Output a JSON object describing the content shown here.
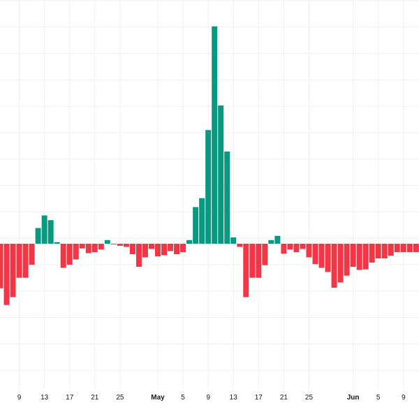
{
  "colors": {
    "up": "#089981",
    "down": "#f23645",
    "grid": "#f0f1f4",
    "text": "#131722"
  },
  "chart_data": {
    "type": "bar",
    "title": "",
    "xlabel": "",
    "ylabel": "",
    "grid": true,
    "ylim": [
      -28,
      42
    ],
    "categories": [
      "Apr 6",
      "Apr 7",
      "Apr 8",
      "Apr 9",
      "Apr 10",
      "Apr 11",
      "Apr 12",
      "Apr 13",
      "Apr 14",
      "Apr 15",
      "Apr 16",
      "Apr 17",
      "Apr 18",
      "Apr 19",
      "Apr 20",
      "Apr 21",
      "Apr 22",
      "Apr 23",
      "Apr 24",
      "Apr 25",
      "Apr 26",
      "Apr 27",
      "Apr 28",
      "Apr 29",
      "Apr 30",
      "May 1",
      "May 2",
      "May 3",
      "May 4",
      "May 5",
      "May 6",
      "May 7",
      "May 8",
      "May 9",
      "May 10",
      "May 11",
      "May 12",
      "May 13",
      "May 14",
      "May 15",
      "May 16",
      "May 17",
      "May 18",
      "May 19",
      "May 20",
      "May 21",
      "May 22",
      "May 23",
      "May 24",
      "May 25",
      "May 26",
      "May 27",
      "May 28",
      "May 29",
      "May 30",
      "May 31",
      "Jun 1",
      "Jun 2",
      "Jun 3",
      "Jun 4",
      "Jun 5",
      "Jun 6",
      "Jun 7",
      "Jun 8",
      "Jun 9",
      "Jun 10",
      "Jun 11"
    ],
    "values": [
      -8.5,
      -11.7,
      -10.2,
      -6.5,
      -6.5,
      -4.0,
      3.0,
      5.4,
      4.5,
      0.3,
      -4.6,
      -4.0,
      -3.0,
      -0.9,
      -1.8,
      -1.6,
      -1.1,
      0.7,
      -0.1,
      -0.4,
      -0.6,
      -2.0,
      -4.4,
      -2.6,
      -1.0,
      -2.4,
      -2.2,
      -1.4,
      -2.0,
      -1.6,
      0.7,
      7.0,
      8.7,
      21.7,
      41.5,
      26.4,
      17.6,
      1.2,
      -0.6,
      -10.2,
      -6.5,
      -6.5,
      -4.1,
      0.7,
      1.5,
      -1.9,
      -1.1,
      -1.6,
      -1.0,
      -2.6,
      -3.9,
      -4.6,
      -5.4,
      -8.4,
      -7.4,
      -6.1,
      -4.4,
      -5.0,
      -4.9,
      -3.6,
      -2.8,
      -2.8,
      -2.3,
      -1.6,
      -1.6,
      -1.6,
      -1.6
    ],
    "x_tick_labels": [
      {
        "label": "9",
        "index": 3
      },
      {
        "label": "13",
        "index": 7
      },
      {
        "label": "17",
        "index": 11
      },
      {
        "label": "21",
        "index": 15
      },
      {
        "label": "25",
        "index": 19
      },
      {
        "label": "May",
        "index": 25,
        "major": true
      },
      {
        "label": "5",
        "index": 29
      },
      {
        "label": "9",
        "index": 33
      },
      {
        "label": "13",
        "index": 37
      },
      {
        "label": "17",
        "index": 41
      },
      {
        "label": "21",
        "index": 45
      },
      {
        "label": "25",
        "index": 49
      },
      {
        "label": "Jun",
        "index": 56,
        "major": true
      },
      {
        "label": "5",
        "index": 60
      },
      {
        "label": "9",
        "index": 64
      }
    ]
  }
}
